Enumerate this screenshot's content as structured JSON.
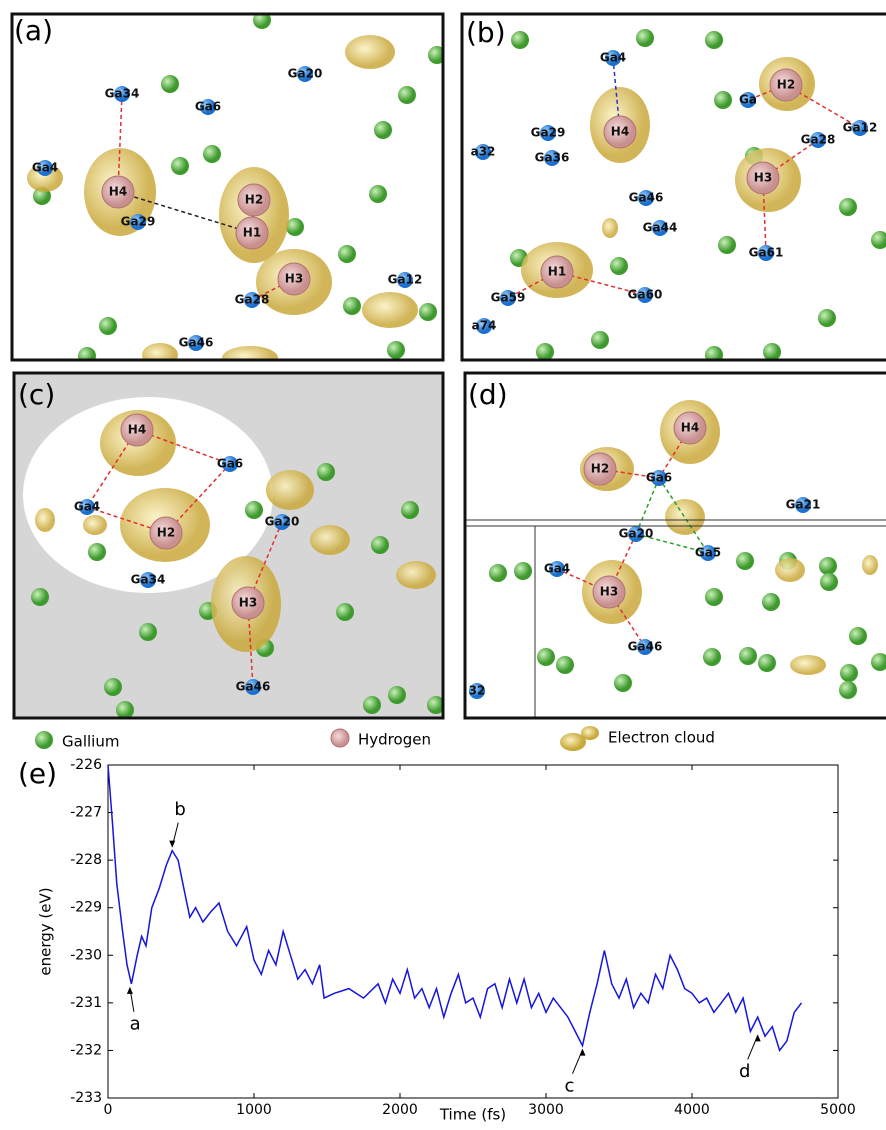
{
  "panels": [
    {
      "label": "(a)",
      "atoms": [
        "Ga34",
        "Ga6",
        "Ga20",
        "Ga4",
        "H4",
        "Ga29",
        "H2",
        "H1",
        "H3",
        "Ga28",
        "Ga12",
        "Ga46"
      ]
    },
    {
      "label": "(b)",
      "atoms": [
        "Ga4",
        "H2",
        "Ga",
        "Ga12",
        "H4",
        "Ga29",
        "a32",
        "Ga28",
        "Ga36",
        "H3",
        "Ga46",
        "Ga44",
        "Ga61",
        "H1",
        "Ga59",
        "Ga60",
        "a74"
      ]
    },
    {
      "label": "(c)",
      "atoms": [
        "H4",
        "Ga6",
        "Ga4",
        "H2",
        "Ga20",
        "Ga34",
        "H3",
        "Ga46"
      ]
    },
    {
      "label": "(d)",
      "atoms": [
        "H4",
        "H2",
        "Ga6",
        "Ga21",
        "Ga20",
        "Ga5",
        "Ga4",
        "H3",
        "Ga46",
        "32"
      ]
    }
  ],
  "legend": [
    "Gallium",
    "Hydrogen",
    "Electron cloud"
  ],
  "chart_data": {
    "type": "line",
    "panel_label": "(e)",
    "xlabel": "Time (fs)",
    "ylabel": "energy (eV)",
    "color": "#1515e0",
    "x": [
      0,
      30,
      60,
      100,
      130,
      160,
      200,
      230,
      260,
      300,
      350,
      400,
      440,
      480,
      520,
      560,
      600,
      650,
      700,
      760,
      820,
      880,
      950,
      1000,
      1050,
      1100,
      1150,
      1200,
      1250,
      1300,
      1350,
      1400,
      1450,
      1480,
      1550,
      1650,
      1750,
      1850,
      1900,
      1950,
      2000,
      2050,
      2100,
      2150,
      2200,
      2250,
      2300,
      2350,
      2400,
      2450,
      2500,
      2550,
      2600,
      2650,
      2700,
      2750,
      2800,
      2850,
      2900,
      2950,
      3000,
      3050,
      3100,
      3150,
      3200,
      3250,
      3300,
      3350,
      3400,
      3450,
      3500,
      3550,
      3600,
      3650,
      3700,
      3750,
      3800,
      3850,
      3900,
      3950,
      4000,
      4050,
      4100,
      4150,
      4200,
      4250,
      4300,
      4350,
      4400,
      4450,
      4500,
      4550,
      4600,
      4650,
      4700,
      4750
    ],
    "values": [
      -226.0,
      -227.2,
      -228.5,
      -229.5,
      -230.2,
      -230.6,
      -230.0,
      -229.6,
      -229.8,
      -229.0,
      -228.6,
      -228.1,
      -227.8,
      -228.0,
      -228.6,
      -229.2,
      -229.0,
      -229.3,
      -229.1,
      -228.9,
      -229.5,
      -229.8,
      -229.4,
      -230.1,
      -230.4,
      -229.9,
      -230.2,
      -229.5,
      -230.0,
      -230.5,
      -230.3,
      -230.6,
      -230.2,
      -230.9,
      -230.8,
      -230.7,
      -230.9,
      -230.6,
      -231.0,
      -230.5,
      -230.8,
      -230.3,
      -230.9,
      -230.7,
      -231.1,
      -230.7,
      -231.3,
      -230.8,
      -230.4,
      -231.0,
      -230.9,
      -231.3,
      -230.7,
      -230.6,
      -231.1,
      -230.5,
      -231.0,
      -230.5,
      -231.1,
      -230.8,
      -231.2,
      -230.9,
      -231.1,
      -231.3,
      -231.6,
      -231.9,
      -231.2,
      -230.6,
      -229.9,
      -230.6,
      -230.9,
      -230.5,
      -231.1,
      -230.8,
      -231.0,
      -230.4,
      -230.7,
      -230.0,
      -230.3,
      -230.7,
      -230.8,
      -231.0,
      -230.9,
      -231.2,
      -231.0,
      -230.8,
      -231.2,
      -230.9,
      -231.6,
      -231.3,
      -231.7,
      -231.5,
      -232.0,
      -231.8,
      -231.2,
      -231.0
    ],
    "xlim": [
      0,
      5000
    ],
    "xticks": [
      0,
      1000,
      2000,
      3000,
      4000,
      5000
    ],
    "ylim": [
      -233,
      -226
    ],
    "yticks": [
      -233,
      -232,
      -231,
      -230,
      -229,
      -228,
      -227,
      -226
    ],
    "annotations": [
      {
        "text": "a",
        "x": 150,
        "y": -230.6
      },
      {
        "text": "b",
        "x": 440,
        "y": -227.8
      },
      {
        "text": "c",
        "x": 3250,
        "y": -231.9
      },
      {
        "text": "d",
        "x": 4450,
        "y": -231.6
      }
    ]
  }
}
